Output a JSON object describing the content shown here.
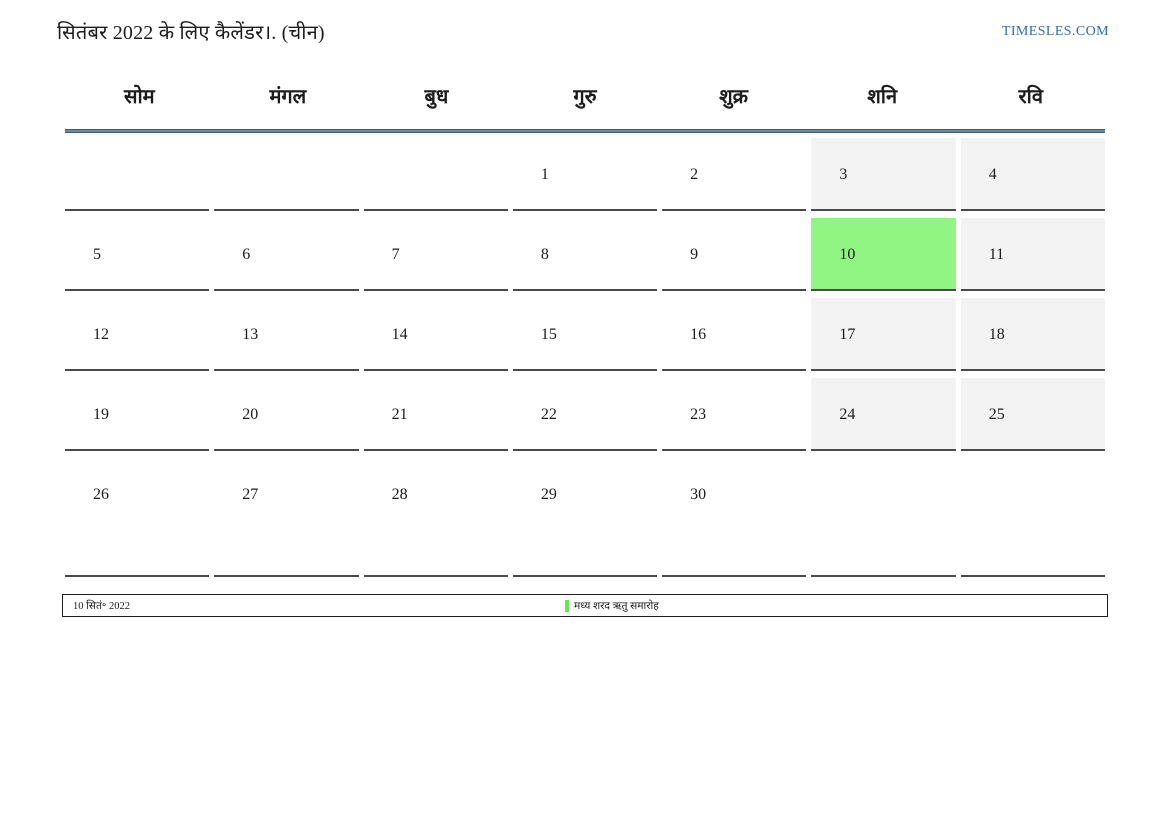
{
  "header": {
    "title": "सितंबर 2022 के लिए कैलेंडर।. (चीन)",
    "site_link": "TIMESLES.COM"
  },
  "colors": {
    "link_blue": "#2a6db4",
    "rule_mid": "#6e87a5",
    "rule_dark": "#3c5a82",
    "cell_border": "#4a4a4a",
    "weekend_bg": "#f3f3f3",
    "today_bg": "#91f584",
    "marker_green": "#66e556"
  },
  "calendar": {
    "month": "सितंबर",
    "year": "2022",
    "today_date": "10",
    "weekdays": [
      "सोम",
      "मंगल",
      "बुध",
      "गुरु",
      "शुक्र",
      "शनि",
      "रवि"
    ],
    "weeks": [
      [
        "",
        "",
        "",
        "1",
        "2",
        "3",
        "4"
      ],
      [
        "5",
        "6",
        "7",
        "8",
        "9",
        "10",
        "11"
      ],
      [
        "12",
        "13",
        "14",
        "15",
        "16",
        "17",
        "18"
      ],
      [
        "19",
        "20",
        "21",
        "22",
        "23",
        "24",
        "25"
      ],
      [
        "26",
        "27",
        "28",
        "29",
        "30",
        "",
        ""
      ]
    ]
  },
  "legend": {
    "date": "10 सितं॰ 2022",
    "event": "मध्य शरद ऋतु समारोह"
  }
}
